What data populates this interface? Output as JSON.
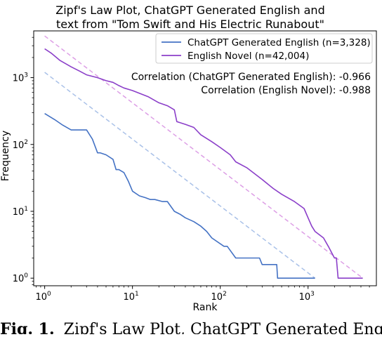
{
  "chart_data": {
    "type": "line",
    "title_lines": [
      "Zipf's Law Plot, ChatGPT Generated English and",
      "text from \"Tom Swift and His Electric Runabout\""
    ],
    "xlabel": "Rank",
    "ylabel": "Frequency",
    "xscale": "log",
    "yscale": "log",
    "xlim": [
      0.75,
      6000
    ],
    "ylim": [
      0.77,
      5000
    ],
    "xticks": [
      {
        "value": 1,
        "base": "10",
        "exp": "0"
      },
      {
        "value": 10,
        "base": "10",
        "exp": "1"
      },
      {
        "value": 100,
        "base": "10",
        "exp": "2"
      },
      {
        "value": 1000,
        "base": "10",
        "exp": "3"
      }
    ],
    "yticks": [
      {
        "value": 1,
        "base": "10",
        "exp": "0"
      },
      {
        "value": 10,
        "base": "10",
        "exp": "1"
      },
      {
        "value": 100,
        "base": "10",
        "exp": "2"
      },
      {
        "value": 1000,
        "base": "10",
        "exp": "3"
      }
    ],
    "legend_position": "top-right",
    "grid": false,
    "series": [
      {
        "name": "ChatGPT Generated English (n=3,328)",
        "color": "#4472c4",
        "style": "solid",
        "points": [
          [
            1,
            290
          ],
          [
            1.3,
            235
          ],
          [
            1.6,
            195
          ],
          [
            2,
            165
          ],
          [
            2.5,
            165
          ],
          [
            3,
            165
          ],
          [
            3.5,
            120
          ],
          [
            4,
            75
          ],
          [
            4.3,
            75
          ],
          [
            5,
            70
          ],
          [
            6,
            60
          ],
          [
            6.5,
            42
          ],
          [
            7,
            42
          ],
          [
            8,
            38
          ],
          [
            9,
            28
          ],
          [
            10,
            20
          ],
          [
            12,
            17
          ],
          [
            14,
            16
          ],
          [
            16,
            15
          ],
          [
            18,
            15
          ],
          [
            22,
            14
          ],
          [
            25,
            14
          ],
          [
            30,
            10
          ],
          [
            35,
            9
          ],
          [
            40,
            8
          ],
          [
            50,
            7
          ],
          [
            60,
            6
          ],
          [
            70,
            5
          ],
          [
            80,
            4
          ],
          [
            110,
            3
          ],
          [
            120,
            3
          ],
          [
            150,
            2
          ],
          [
            280,
            2
          ],
          [
            300,
            1.6
          ],
          [
            440,
            1.6
          ],
          [
            450,
            1
          ],
          [
            1200,
            1
          ]
        ]
      },
      {
        "name": "English Novel (n=42,004)",
        "color": "#8b3fc9",
        "style": "solid",
        "points": [
          [
            1,
            2700
          ],
          [
            1.2,
            2300
          ],
          [
            1.5,
            1800
          ],
          [
            2,
            1450
          ],
          [
            2.5,
            1250
          ],
          [
            3,
            1100
          ],
          [
            4,
            1000
          ],
          [
            5,
            900
          ],
          [
            6,
            850
          ],
          [
            7,
            760
          ],
          [
            8,
            700
          ],
          [
            10,
            640
          ],
          [
            15,
            520
          ],
          [
            20,
            420
          ],
          [
            25,
            380
          ],
          [
            30,
            330
          ],
          [
            32,
            220
          ],
          [
            40,
            200
          ],
          [
            50,
            180
          ],
          [
            60,
            140
          ],
          [
            80,
            110
          ],
          [
            100,
            90
          ],
          [
            130,
            70
          ],
          [
            150,
            55
          ],
          [
            200,
            45
          ],
          [
            300,
            30
          ],
          [
            400,
            22
          ],
          [
            500,
            18
          ],
          [
            700,
            14
          ],
          [
            900,
            11
          ],
          [
            1000,
            8
          ],
          [
            1100,
            6
          ],
          [
            1200,
            5
          ],
          [
            1500,
            4
          ],
          [
            1700,
            3
          ],
          [
            2000,
            2
          ],
          [
            2100,
            2
          ],
          [
            2200,
            1
          ],
          [
            4200,
            1
          ]
        ]
      },
      {
        "name": "",
        "color": "#a9c1e8",
        "style": "dashed",
        "points": [
          [
            1,
            1200
          ],
          [
            1200,
            1
          ]
        ]
      },
      {
        "name": "",
        "color": "#dd9fe6",
        "style": "dashed",
        "points": [
          [
            1,
            4200
          ],
          [
            4200,
            1
          ]
        ]
      }
    ],
    "annotations": [
      "Correlation (ChatGPT Generated English): -0.966",
      "Correlation (English Novel): -0.988"
    ]
  },
  "caption": {
    "label": "Fig. 1.",
    "text": "Zipf's Law Plot, ChatGPT Generated English"
  }
}
